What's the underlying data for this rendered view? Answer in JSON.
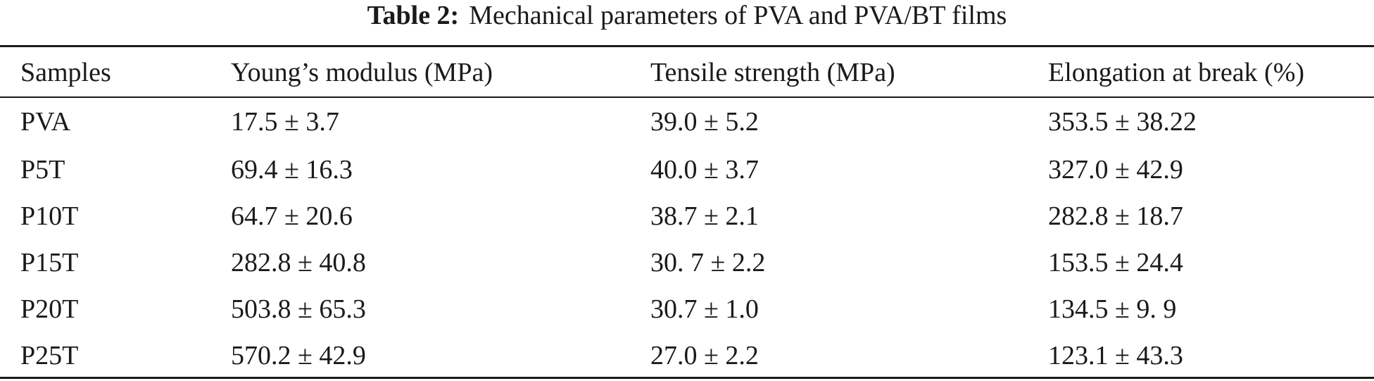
{
  "caption": {
    "label": "Table 2:",
    "text": "Mechanical parameters of PVA and PVA/BT films"
  },
  "table": {
    "headers": [
      "Samples",
      "Young’s modulus (MPa)",
      "Tensile strength (MPa)",
      "Elongation at break (%)"
    ],
    "rows": [
      [
        "PVA",
        "17.5 ± 3.7",
        "39.0 ± 5.2",
        "353.5 ± 38.22"
      ],
      [
        "P5T",
        "69.4 ± 16.3",
        "40.0 ± 3.7",
        "327.0 ± 42.9"
      ],
      [
        "P10T",
        "64.7 ± 20.6",
        "38.7 ± 2.1",
        "282.8 ± 18.7"
      ],
      [
        "P15T",
        "282.8 ± 40.8",
        "30. 7 ± 2.2",
        "153.5 ± 24.4"
      ],
      [
        "P20T",
        "503.8 ± 65.3",
        "30.7 ± 1.0",
        "134.5 ± 9. 9"
      ],
      [
        "P25T",
        "570.2 ± 42.9",
        "27.0 ± 2.2",
        "123.1 ± 43.3"
      ]
    ]
  }
}
